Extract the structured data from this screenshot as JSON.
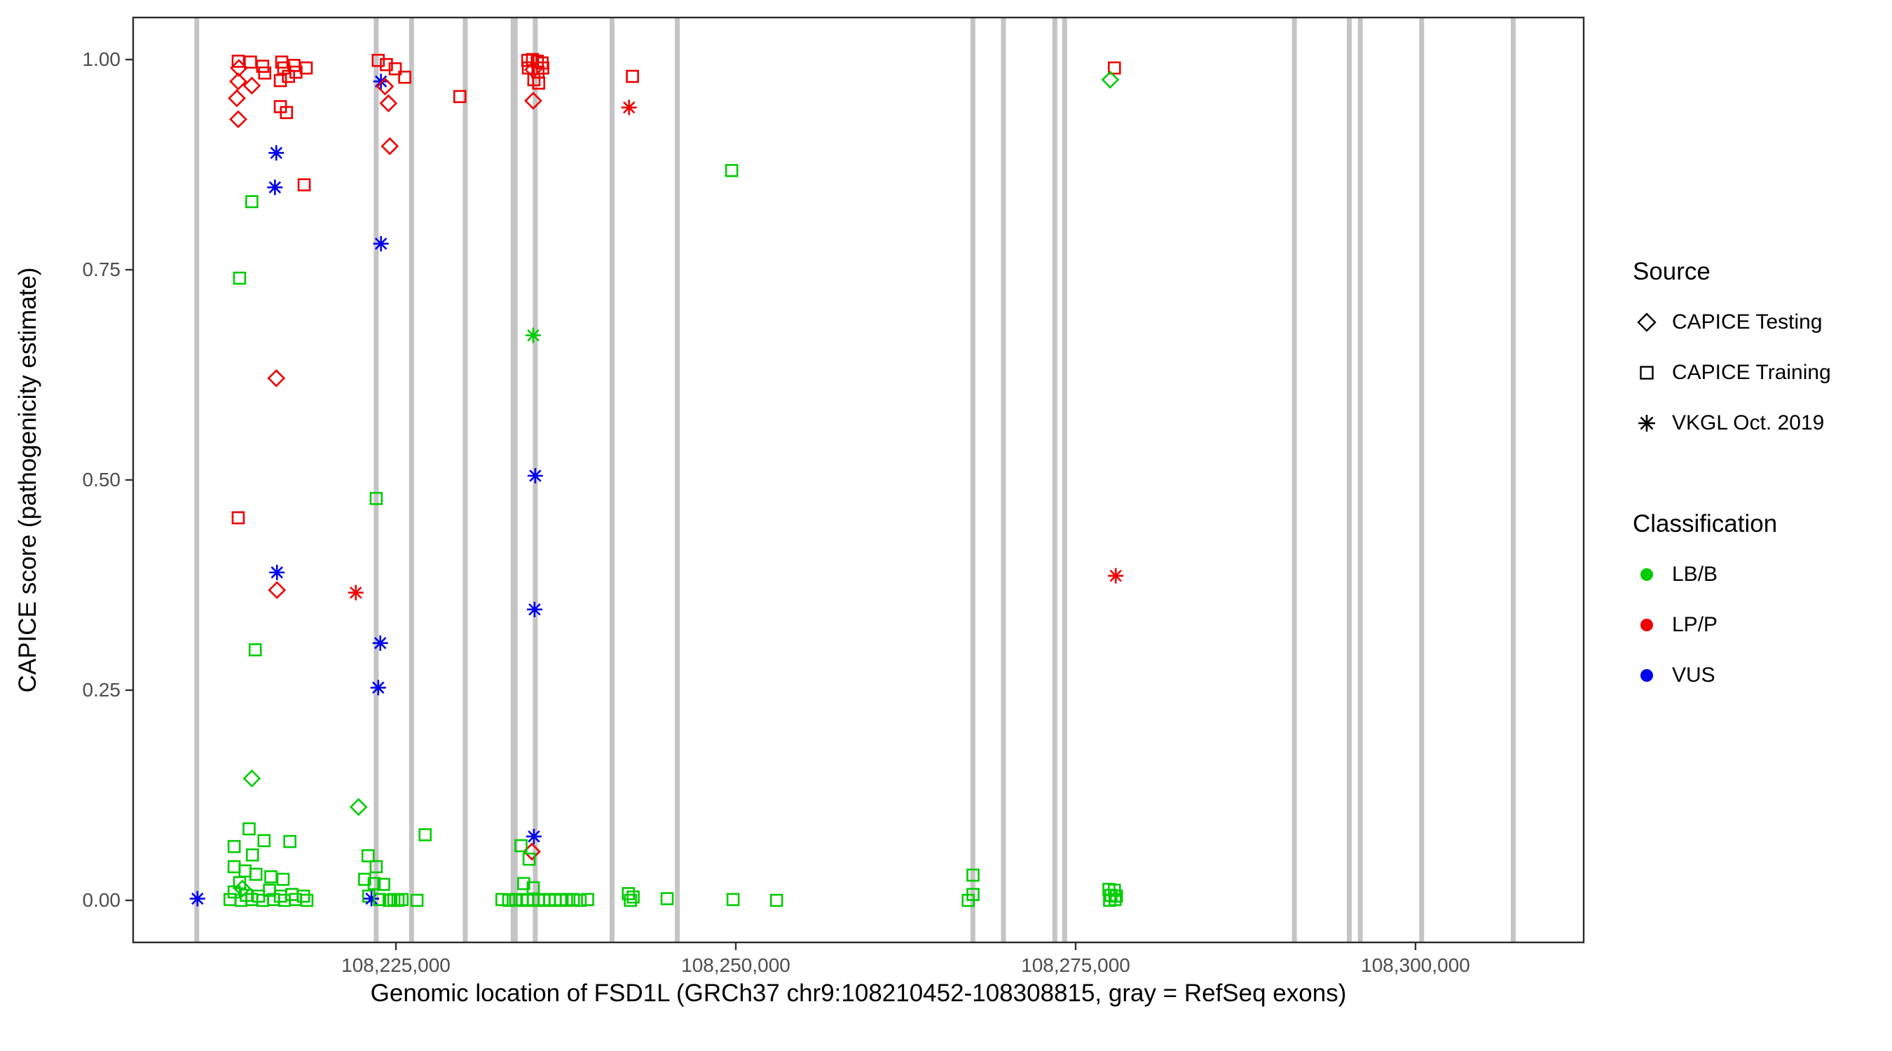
{
  "chart_data": {
    "type": "scatter",
    "title": "",
    "xlabel": "Genomic location of FSD1L (GRCh37 chr9:108210452-108308815, gray = RefSeq exons)",
    "ylabel": "CAPICE score (pathogenicity estimate)",
    "xlim": [
      108205670,
      108312371
    ],
    "ylim": [
      -0.05,
      1.05
    ],
    "grid": "off",
    "legend_position": "right",
    "x_ticks": [
      {
        "value": 108225000,
        "label": "108,225,000"
      },
      {
        "value": 108250000,
        "label": "108,250,000"
      },
      {
        "value": 108275000,
        "label": "108,275,000"
      },
      {
        "value": 108300000,
        "label": "108,300,000"
      }
    ],
    "y_ticks": [
      {
        "value": 0.0,
        "label": "0.00"
      },
      {
        "value": 0.25,
        "label": "0.25"
      },
      {
        "value": 0.5,
        "label": "0.50"
      },
      {
        "value": 0.75,
        "label": "0.75"
      },
      {
        "value": 1.0,
        "label": "1.00"
      }
    ],
    "colors": {
      "LB/B": "#00CC00",
      "LP/P": "#EE0000",
      "VUS": "#0000EE",
      "exon": "#C4C4C4"
    },
    "exons": [
      {
        "pos": 108210350
      },
      {
        "pos": 108223550
      },
      {
        "pos": 108226150
      },
      {
        "pos": 108230100
      },
      {
        "pos": 108233700,
        "w": 10
      },
      {
        "pos": 108235250
      },
      {
        "pos": 108240900
      },
      {
        "pos": 108245700
      },
      {
        "pos": 108267440
      },
      {
        "pos": 108269690
      },
      {
        "pos": 108273470
      },
      {
        "pos": 108274190
      },
      {
        "pos": 108291090
      },
      {
        "pos": 108295130
      },
      {
        "pos": 108295940
      },
      {
        "pos": 108300450
      },
      {
        "pos": 108307190
      }
    ],
    "legend": {
      "source": {
        "title": "Source",
        "items": [
          {
            "label": "CAPICE Testing",
            "shape": "diamond"
          },
          {
            "label": "CAPICE Training",
            "shape": "square"
          },
          {
            "label": "VKGL Oct. 2019",
            "shape": "asterisk"
          }
        ]
      },
      "classification": {
        "title": "Classification",
        "items": [
          {
            "label": "LB/B",
            "color_key": "LB/B"
          },
          {
            "label": "LP/P",
            "color_key": "LP/P"
          },
          {
            "label": "VUS",
            "color_key": "VUS"
          }
        ]
      }
    },
    "points_format": [
      "x_genomic",
      "y_capice_score",
      "shape(sq=square,di=diamond,as=asterisk)",
      "classification"
    ],
    "points": [
      [
        108213400,
        0.998,
        "sq",
        "LP/P"
      ],
      [
        108213450,
        0.99,
        "di",
        "LP/P"
      ],
      [
        108214300,
        0.997,
        "sq",
        "LP/P"
      ],
      [
        108215200,
        0.992,
        "sq",
        "LP/P"
      ],
      [
        108215350,
        0.984,
        "sq",
        "LP/P"
      ],
      [
        108216600,
        0.997,
        "sq",
        "LP/P"
      ],
      [
        108216750,
        0.99,
        "sq",
        "LP/P"
      ],
      [
        108217500,
        0.993,
        "sq",
        "LP/P"
      ],
      [
        108217650,
        0.985,
        "sq",
        "LP/P"
      ],
      [
        108218400,
        0.99,
        "sq",
        "LP/P"
      ],
      [
        108213400,
        0.974,
        "di",
        "LP/P"
      ],
      [
        108214400,
        0.969,
        "di",
        "LP/P"
      ],
      [
        108216500,
        0.975,
        "sq",
        "LP/P"
      ],
      [
        108217100,
        0.98,
        "sq",
        "LP/P"
      ],
      [
        108213300,
        0.954,
        "di",
        "LP/P"
      ],
      [
        108216500,
        0.944,
        "sq",
        "LP/P"
      ],
      [
        108216950,
        0.937,
        "sq",
        "LP/P"
      ],
      [
        108213400,
        0.929,
        "di",
        "LP/P"
      ],
      [
        108216200,
        0.889,
        "as",
        "VUS"
      ],
      [
        108216100,
        0.848,
        "as",
        "VUS"
      ],
      [
        108218250,
        0.851,
        "sq",
        "LP/P"
      ],
      [
        108214400,
        0.831,
        "sq",
        "LB/B"
      ],
      [
        108213500,
        0.74,
        "sq",
        "LB/B"
      ],
      [
        108216200,
        0.621,
        "di",
        "LP/P"
      ],
      [
        108213400,
        0.455,
        "sq",
        "LP/P"
      ],
      [
        108216250,
        0.39,
        "as",
        "VUS"
      ],
      [
        108216250,
        0.369,
        "di",
        "LP/P"
      ],
      [
        108214650,
        0.298,
        "sq",
        "LB/B"
      ],
      [
        108214400,
        0.145,
        "di",
        "LB/B"
      ],
      [
        108214200,
        0.085,
        "sq",
        "LB/B"
      ],
      [
        108213100,
        0.064,
        "sq",
        "LB/B"
      ],
      [
        108215300,
        0.071,
        "sq",
        "LB/B"
      ],
      [
        108217200,
        0.07,
        "sq",
        "LB/B"
      ],
      [
        108214450,
        0.054,
        "sq",
        "LB/B"
      ],
      [
        108213100,
        0.04,
        "sq",
        "LB/B"
      ],
      [
        108213900,
        0.035,
        "sq",
        "LB/B"
      ],
      [
        108214700,
        0.031,
        "sq",
        "LB/B"
      ],
      [
        108215800,
        0.028,
        "sq",
        "LB/B"
      ],
      [
        108216700,
        0.025,
        "sq",
        "LB/B"
      ],
      [
        108213500,
        0.021,
        "sq",
        "LB/B"
      ],
      [
        108213700,
        0.014,
        "di",
        "LB/B"
      ],
      [
        108213100,
        0.01,
        "sq",
        "LB/B"
      ],
      [
        108214000,
        0.006,
        "sq",
        "LB/B"
      ],
      [
        108214900,
        0.005,
        "sq",
        "LB/B"
      ],
      [
        108215700,
        0.012,
        "sq",
        "LB/B"
      ],
      [
        108216500,
        0.005,
        "sq",
        "LB/B"
      ],
      [
        108217350,
        0.007,
        "sq",
        "LB/B"
      ],
      [
        108218200,
        0.005,
        "sq",
        "LB/B"
      ],
      [
        108212800,
        0.001,
        "sq",
        "LB/B"
      ],
      [
        108213600,
        0.0,
        "sq",
        "LB/B"
      ],
      [
        108214400,
        0.001,
        "sq",
        "LB/B"
      ],
      [
        108215200,
        0.0,
        "sq",
        "LB/B"
      ],
      [
        108216000,
        0.001,
        "sq",
        "LB/B"
      ],
      [
        108216800,
        0.0,
        "sq",
        "LB/B"
      ],
      [
        108217600,
        0.001,
        "sq",
        "LB/B"
      ],
      [
        108218450,
        0.0,
        "sq",
        "LB/B"
      ],
      [
        108210400,
        0.002,
        "as",
        "VUS"
      ],
      [
        108222050,
        0.366,
        "as",
        "LP/P"
      ],
      [
        108223700,
        0.999,
        "sq",
        "LP/P"
      ],
      [
        108224300,
        0.994,
        "sq",
        "LP/P"
      ],
      [
        108224950,
        0.989,
        "sq",
        "LP/P"
      ],
      [
        108223900,
        0.974,
        "as",
        "VUS"
      ],
      [
        108224200,
        0.968,
        "di",
        "LP/P"
      ],
      [
        108225650,
        0.979,
        "sq",
        "LP/P"
      ],
      [
        108224450,
        0.948,
        "di",
        "LP/P"
      ],
      [
        108224550,
        0.897,
        "di",
        "LP/P"
      ],
      [
        108223900,
        0.781,
        "as",
        "VUS"
      ],
      [
        108223550,
        0.478,
        "sq",
        "LB/B"
      ],
      [
        108223850,
        0.306,
        "as",
        "VUS"
      ],
      [
        108223700,
        0.253,
        "as",
        "VUS"
      ],
      [
        108222250,
        0.111,
        "di",
        "LB/B"
      ],
      [
        108222950,
        0.053,
        "sq",
        "LB/B"
      ],
      [
        108223550,
        0.04,
        "sq",
        "LB/B"
      ],
      [
        108222700,
        0.025,
        "sq",
        "LB/B"
      ],
      [
        108223400,
        0.02,
        "sq",
        "LB/B"
      ],
      [
        108224100,
        0.019,
        "sq",
        "LB/B"
      ],
      [
        108223000,
        0.005,
        "sq",
        "LB/B"
      ],
      [
        108223200,
        0.002,
        "as",
        "VUS"
      ],
      [
        108223800,
        0.001,
        "sq",
        "LB/B"
      ],
      [
        108224500,
        0.0,
        "sq",
        "LB/B"
      ],
      [
        108224850,
        0.001,
        "sq",
        "LB/B"
      ],
      [
        108225150,
        0.0,
        "sq",
        "LB/B"
      ],
      [
        108225450,
        0.001,
        "sq",
        "LB/B"
      ],
      [
        108226550,
        0.0,
        "sq",
        "LB/B"
      ],
      [
        108227150,
        0.078,
        "sq",
        "LB/B"
      ],
      [
        108229700,
        0.956,
        "sq",
        "LP/P"
      ],
      [
        108234700,
        0.999,
        "sq",
        "LP/P"
      ],
      [
        108235050,
        1.0,
        "sq",
        "LP/P"
      ],
      [
        108235400,
        0.998,
        "sq",
        "LP/P"
      ],
      [
        108235750,
        0.996,
        "sq",
        "LP/P"
      ],
      [
        108234750,
        0.99,
        "sq",
        "LP/P"
      ],
      [
        108235100,
        0.988,
        "di",
        "LP/P"
      ],
      [
        108235450,
        0.985,
        "sq",
        "LP/P"
      ],
      [
        108235800,
        0.99,
        "sq",
        "LP/P"
      ],
      [
        108235150,
        0.976,
        "sq",
        "LP/P"
      ],
      [
        108235500,
        0.972,
        "sq",
        "LP/P"
      ],
      [
        108235100,
        0.951,
        "di",
        "LP/P"
      ],
      [
        108235100,
        0.672,
        "as",
        "LB/B"
      ],
      [
        108235250,
        0.505,
        "as",
        "VUS"
      ],
      [
        108235200,
        0.346,
        "as",
        "VUS"
      ],
      [
        108235150,
        0.076,
        "as",
        "VUS"
      ],
      [
        108235000,
        0.058,
        "di",
        "LP/P"
      ],
      [
        108234200,
        0.065,
        "sq",
        "LB/B"
      ],
      [
        108234800,
        0.049,
        "sq",
        "LB/B"
      ],
      [
        108234400,
        0.02,
        "sq",
        "LB/B"
      ],
      [
        108235100,
        0.015,
        "sq",
        "LB/B"
      ],
      [
        108232800,
        0.001,
        "sq",
        "LB/B"
      ],
      [
        108233300,
        0.0,
        "sq",
        "LB/B"
      ],
      [
        108233800,
        0.001,
        "sq",
        "LB/B"
      ],
      [
        108234300,
        0.0,
        "sq",
        "LB/B"
      ],
      [
        108234700,
        0.001,
        "sq",
        "LB/B"
      ],
      [
        108235100,
        0.0,
        "sq",
        "LB/B"
      ],
      [
        108235500,
        0.001,
        "sq",
        "LB/B"
      ],
      [
        108235900,
        0.0,
        "sq",
        "LB/B"
      ],
      [
        108236300,
        0.001,
        "sq",
        "LB/B"
      ],
      [
        108236700,
        0.0,
        "sq",
        "LB/B"
      ],
      [
        108237100,
        0.001,
        "sq",
        "LB/B"
      ],
      [
        108237550,
        0.0,
        "sq",
        "LB/B"
      ],
      [
        108238050,
        0.001,
        "sq",
        "LB/B"
      ],
      [
        108238550,
        0.0,
        "sq",
        "LB/B"
      ],
      [
        108239100,
        0.001,
        "sq",
        "LB/B"
      ],
      [
        108242400,
        0.98,
        "sq",
        "LP/P"
      ],
      [
        108242150,
        0.943,
        "as",
        "LP/P"
      ],
      [
        108242100,
        0.008,
        "sq",
        "LB/B"
      ],
      [
        108242450,
        0.004,
        "sq",
        "LB/B"
      ],
      [
        108242250,
        0.0,
        "sq",
        "LB/B"
      ],
      [
        108244950,
        0.002,
        "sq",
        "LB/B"
      ],
      [
        108249700,
        0.868,
        "sq",
        "LB/B"
      ],
      [
        108249800,
        0.001,
        "sq",
        "LB/B"
      ],
      [
        108253000,
        0.0,
        "sq",
        "LB/B"
      ],
      [
        108267450,
        0.03,
        "sq",
        "LB/B"
      ],
      [
        108267450,
        0.007,
        "sq",
        "LB/B"
      ],
      [
        108267100,
        0.0,
        "sq",
        "LB/B"
      ],
      [
        108277850,
        0.99,
        "sq",
        "LP/P"
      ],
      [
        108277550,
        0.976,
        "di",
        "LB/B"
      ],
      [
        108277950,
        0.386,
        "as",
        "LP/P"
      ],
      [
        108277450,
        0.013,
        "sq",
        "LB/B"
      ],
      [
        108277850,
        0.012,
        "sq",
        "LB/B"
      ],
      [
        108277600,
        0.006,
        "sq",
        "LB/B"
      ],
      [
        108278000,
        0.005,
        "sq",
        "LB/B"
      ],
      [
        108277500,
        0.0,
        "sq",
        "LB/B"
      ],
      [
        108277900,
        0.001,
        "sq",
        "LB/B"
      ]
    ]
  }
}
